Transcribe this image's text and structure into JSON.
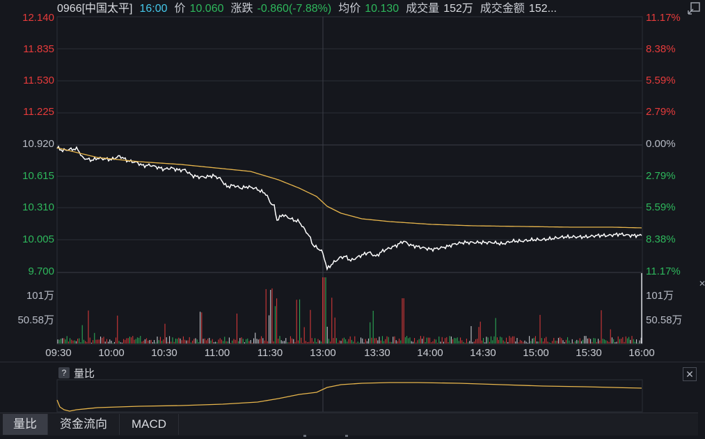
{
  "header": {
    "stock": "0966[中国太平]",
    "time": "16:00",
    "price_label": "价",
    "price": "10.060",
    "change_label": "涨跌",
    "change": "-0.860(-7.88%)",
    "avg_label": "均价",
    "avg": "10.130",
    "volume_label": "成交量",
    "volume": "152万",
    "amount_label": "成交金额",
    "amount": "152..."
  },
  "price_axis": {
    "left": [
      "12.140",
      "11.835",
      "11.530",
      "11.225",
      "10.920",
      "10.615",
      "10.310",
      "10.005",
      "9.700"
    ],
    "right": [
      "11.17%",
      "8.38%",
      "5.59%",
      "2.79%",
      "0.00%",
      "2.79%",
      "5.59%",
      "8.38%",
      "11.17%"
    ]
  },
  "volume_axis": {
    "left": [
      "101万",
      "50.58万"
    ],
    "right": [
      "101万",
      "50.58万"
    ]
  },
  "time_axis": [
    "09:30",
    "10:00",
    "10:30",
    "11:00",
    "11:30",
    "13:00",
    "13:30",
    "14:00",
    "14:30",
    "15:00",
    "15:30",
    "16:00"
  ],
  "sub_panel": {
    "title": "量比",
    "help": "?",
    "close": "✕"
  },
  "tabs": [
    {
      "label": "量比",
      "active": true
    },
    {
      "label": "资金流向",
      "active": false
    },
    {
      "label": "MACD",
      "active": false
    }
  ],
  "colors": {
    "up": "#e73b3b",
    "down": "#2eb85c",
    "price_line": "#ffffff",
    "avg_line": "#e8b64c",
    "grid": "#2c2f36"
  },
  "icons": {
    "corner": "restore-window-icon",
    "close": "close-icon",
    "side": "side-close-icon"
  }
}
